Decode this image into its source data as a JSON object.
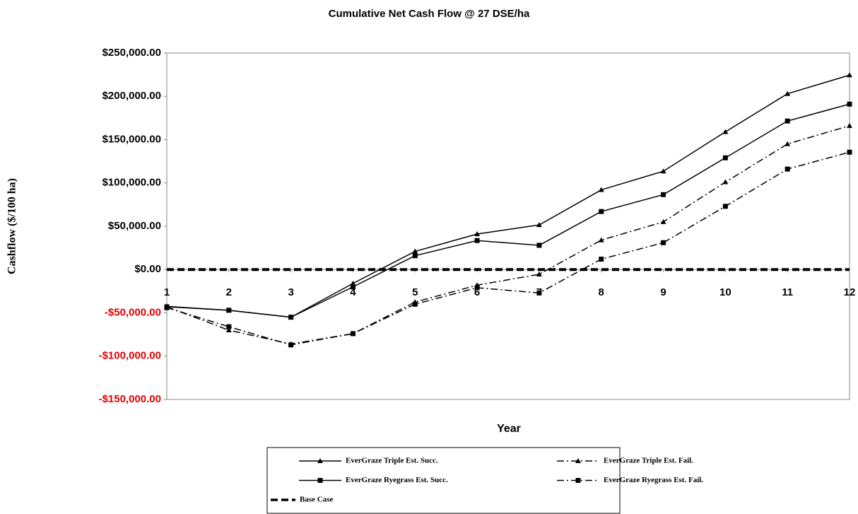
{
  "chart_data": {
    "type": "line",
    "title": "Cumulative  Net Cash Flow @ 27 DSE/ha",
    "x_label": "Year",
    "y_label": "Cashflow ($/100 ha)",
    "x": [
      1,
      2,
      3,
      4,
      5,
      6,
      7,
      8,
      9,
      10,
      11,
      12
    ],
    "xlim": [
      1,
      12
    ],
    "ylim": [
      -150000,
      250000
    ],
    "yticks": [
      {
        "value": -150000,
        "label": "-$150,000.00"
      },
      {
        "value": -100000,
        "label": "-$100,000.00"
      },
      {
        "value": -50000,
        "label": "-$50,000.00"
      },
      {
        "value": 0,
        "label": "$0.00"
      },
      {
        "value": 50000,
        "label": "$50,000.00"
      },
      {
        "value": 100000,
        "label": "$100,000.00"
      },
      {
        "value": 150000,
        "label": "$150,000.00"
      },
      {
        "value": 200000,
        "label": "$200,000.00"
      },
      {
        "value": 250000,
        "label": "$250,000.00"
      }
    ],
    "negative_tick_color": "#e00000",
    "grid": false,
    "legend_position": "bottom",
    "series": [
      {
        "name": "EverGraze Triple Est. Succ.",
        "color": "#000000",
        "dash": "solid",
        "marker": "triangle",
        "values": [
          -42500,
          -47000,
          -55000,
          -16000,
          21000,
          41000,
          51500,
          92000,
          113500,
          159000,
          203000,
          224500
        ]
      },
      {
        "name": "EverGraze Triple Est. Fail.",
        "color": "#000000",
        "dash": "dashdot",
        "marker": "triangle",
        "values": [
          -43000,
          -70000,
          -86000,
          -74000,
          -37500,
          -18000,
          -5500,
          34000,
          55000,
          101000,
          145000,
          166000
        ]
      },
      {
        "name": "EverGraze Ryegrass Est. Succ.",
        "color": "#000000",
        "dash": "solid",
        "marker": "square",
        "values": [
          -43000,
          -47000,
          -55000,
          -20000,
          16000,
          33500,
          28000,
          67000,
          86500,
          129000,
          171500,
          191000
        ]
      },
      {
        "name": "EverGraze Ryegrass Est. Fail.",
        "color": "#000000",
        "dash": "dashdot",
        "marker": "square",
        "values": [
          -44000,
          -66000,
          -87000,
          -74000,
          -40000,
          -21000,
          -27000,
          12000,
          31000,
          73000,
          116000,
          135500
        ]
      },
      {
        "name": "Base Case",
        "color": "#000000",
        "dash": "dashed",
        "marker": "none",
        "values": [
          0,
          0,
          0,
          0,
          0,
          0,
          0,
          0,
          0,
          0,
          0,
          0
        ]
      }
    ]
  }
}
